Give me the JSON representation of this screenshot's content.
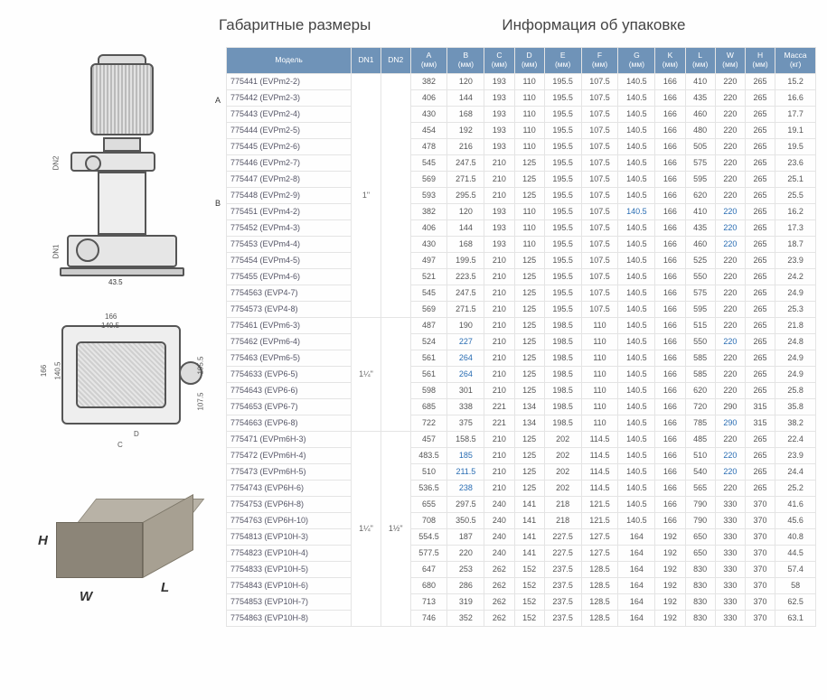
{
  "titles": {
    "left": "Габаритные размеры",
    "right": "Информация об упаковке"
  },
  "diagram": {
    "pump_side": {
      "dn2": "DN2",
      "dn1": "DN1",
      "dimA": "A",
      "dimB": "B",
      "dim435": "43.5"
    },
    "pump_top": {
      "d166": "166",
      "d1405_top": "140.5",
      "d166_left": "166",
      "d1405_left": "140.5",
      "d1955": "195.5",
      "d1075": "107.5",
      "dC": "C",
      "dD": "D"
    },
    "pkg": {
      "H": "H",
      "W": "W",
      "L": "L"
    }
  },
  "table": {
    "headers": [
      "Модель",
      "DN1",
      "DN2",
      "A\n(мм)",
      "B\n(мм)",
      "C\n(мм)",
      "D\n(мм)",
      "E\n(мм)",
      "F\n(мм)",
      "G\n(мм)",
      "K\n(мм)",
      "L\n(мм)",
      "W\n(мм)",
      "H\n(мм)",
      "Масса\n(кг)"
    ],
    "groups": [
      {
        "dn1": "1\"",
        "dn2": "",
        "rows": [
          [
            "775441 (EVPm2-2)",
            "382",
            "120",
            "193",
            "110",
            "195.5",
            "107.5",
            "140.5",
            "166",
            "410",
            "220",
            "265",
            "15.2"
          ],
          [
            "775442 (EVPm2-3)",
            "406",
            "144",
            "193",
            "110",
            "195.5",
            "107.5",
            "140.5",
            "166",
            "435",
            "220",
            "265",
            "16.6"
          ],
          [
            "775443 (EVPm2-4)",
            "430",
            "168",
            "193",
            "110",
            "195.5",
            "107.5",
            "140.5",
            "166",
            "460",
            "220",
            "265",
            "17.7"
          ],
          [
            "775444 (EVPm2-5)",
            "454",
            "192",
            "193",
            "110",
            "195.5",
            "107.5",
            "140.5",
            "166",
            "480",
            "220",
            "265",
            "19.1"
          ],
          [
            "775445 (EVPm2-6)",
            "478",
            "216",
            "193",
            "110",
            "195.5",
            "107.5",
            "140.5",
            "166",
            "505",
            "220",
            "265",
            "19.5"
          ],
          [
            "775446 (EVPm2-7)",
            "545",
            "247.5",
            "210",
            "125",
            "195.5",
            "107.5",
            "140.5",
            "166",
            "575",
            "220",
            "265",
            "23.6"
          ],
          [
            "775447 (EVPm2-8)",
            "569",
            "271.5",
            "210",
            "125",
            "195.5",
            "107.5",
            "140.5",
            "166",
            "595",
            "220",
            "265",
            "25.1"
          ],
          [
            "775448 (EVPm2-9)",
            "593",
            "295.5",
            "210",
            "125",
            "195.5",
            "107.5",
            "140.5",
            "166",
            "620",
            "220",
            "265",
            "25.5"
          ],
          [
            "775451 (EVPm4-2)",
            "382",
            "120",
            "193",
            "110",
            "195.5",
            "107.5",
            "140.5",
            "166",
            "410",
            "220",
            "265",
            "16.2"
          ],
          [
            "775452 (EVPm4-3)",
            "406",
            "144",
            "193",
            "110",
            "195.5",
            "107.5",
            "140.5",
            "166",
            "435",
            "220",
            "265",
            "17.3"
          ],
          [
            "775453 (EVPm4-4)",
            "430",
            "168",
            "193",
            "110",
            "195.5",
            "107.5",
            "140.5",
            "166",
            "460",
            "220",
            "265",
            "18.7"
          ],
          [
            "775454 (EVPm4-5)",
            "497",
            "199.5",
            "210",
            "125",
            "195.5",
            "107.5",
            "140.5",
            "166",
            "525",
            "220",
            "265",
            "23.9"
          ],
          [
            "775455 (EVPm4-6)",
            "521",
            "223.5",
            "210",
            "125",
            "195.5",
            "107.5",
            "140.5",
            "166",
            "550",
            "220",
            "265",
            "24.2"
          ],
          [
            "7754563 (EVP4-7)",
            "545",
            "247.5",
            "210",
            "125",
            "195.5",
            "107.5",
            "140.5",
            "166",
            "575",
            "220",
            "265",
            "24.9"
          ],
          [
            "7754573 (EVP4-8)",
            "569",
            "271.5",
            "210",
            "125",
            "195.5",
            "107.5",
            "140.5",
            "166",
            "595",
            "220",
            "265",
            "25.3"
          ]
        ]
      },
      {
        "dn1": "1¼\"",
        "dn2": "",
        "rows": [
          [
            "775461 (EVPm6-3)",
            "487",
            "190",
            "210",
            "125",
            "198.5",
            "110",
            "140.5",
            "166",
            "515",
            "220",
            "265",
            "21.8"
          ],
          [
            "775462 (EVPm6-4)",
            "524",
            "227",
            "210",
            "125",
            "198.5",
            "110",
            "140.5",
            "166",
            "550",
            "220",
            "265",
            "24.8"
          ],
          [
            "775463 (EVPm6-5)",
            "561",
            "264",
            "210",
            "125",
            "198.5",
            "110",
            "140.5",
            "166",
            "585",
            "220",
            "265",
            "24.9"
          ],
          [
            "7754633 (EVP6-5)",
            "561",
            "264",
            "210",
            "125",
            "198.5",
            "110",
            "140.5",
            "166",
            "585",
            "220",
            "265",
            "24.9"
          ],
          [
            "7754643 (EVP6-6)",
            "598",
            "301",
            "210",
            "125",
            "198.5",
            "110",
            "140.5",
            "166",
            "620",
            "220",
            "265",
            "25.8"
          ],
          [
            "7754653 (EVP6-7)",
            "685",
            "338",
            "221",
            "134",
            "198.5",
            "110",
            "140.5",
            "166",
            "720",
            "290",
            "315",
            "35.8"
          ],
          [
            "7754663 (EVP6-8)",
            "722",
            "375",
            "221",
            "134",
            "198.5",
            "110",
            "140.5",
            "166",
            "785",
            "290",
            "315",
            "38.2"
          ]
        ]
      },
      {
        "dn1": "1¼\"",
        "dn2": "1½\"",
        "rows": [
          [
            "775471 (EVPm6H-3)",
            "457",
            "158.5",
            "210",
            "125",
            "202",
            "114.5",
            "140.5",
            "166",
            "485",
            "220",
            "265",
            "22.4"
          ],
          [
            "775472 (EVPm6H-4)",
            "483.5",
            "185",
            "210",
            "125",
            "202",
            "114.5",
            "140.5",
            "166",
            "510",
            "220",
            "265",
            "23.9"
          ],
          [
            "775473 (EVPm6H-5)",
            "510",
            "211.5",
            "210",
            "125",
            "202",
            "114.5",
            "140.5",
            "166",
            "540",
            "220",
            "265",
            "24.4"
          ],
          [
            "7754743 (EVP6H-6)",
            "536.5",
            "238",
            "210",
            "125",
            "202",
            "114.5",
            "140.5",
            "166",
            "565",
            "220",
            "265",
            "25.2"
          ],
          [
            "7754753 (EVP6H-8)",
            "655",
            "297.5",
            "240",
            "141",
            "218",
            "121.5",
            "140.5",
            "166",
            "790",
            "330",
            "370",
            "41.6"
          ],
          [
            "7754763 (EVP6H-10)",
            "708",
            "350.5",
            "240",
            "141",
            "218",
            "121.5",
            "140.5",
            "166",
            "790",
            "330",
            "370",
            "45.6"
          ],
          [
            "7754813 (EVP10H-3)",
            "554.5",
            "187",
            "240",
            "141",
            "227.5",
            "127.5",
            "164",
            "192",
            "650",
            "330",
            "370",
            "40.8"
          ],
          [
            "7754823 (EVP10H-4)",
            "577.5",
            "220",
            "240",
            "141",
            "227.5",
            "127.5",
            "164",
            "192",
            "650",
            "330",
            "370",
            "44.5"
          ],
          [
            "7754833 (EVP10H-5)",
            "647",
            "253",
            "262",
            "152",
            "237.5",
            "128.5",
            "164",
            "192",
            "830",
            "330",
            "370",
            "57.4"
          ],
          [
            "7754843 (EVP10H-6)",
            "680",
            "286",
            "262",
            "152",
            "237.5",
            "128.5",
            "164",
            "192",
            "830",
            "330",
            "370",
            "58"
          ],
          [
            "7754853 (EVP10H-7)",
            "713",
            "319",
            "262",
            "152",
            "237.5",
            "128.5",
            "164",
            "192",
            "830",
            "330",
            "370",
            "62.5"
          ],
          [
            "7754863 (EVP10H-8)",
            "746",
            "352",
            "262",
            "152",
            "237.5",
            "128.5",
            "164",
            "192",
            "830",
            "330",
            "370",
            "63.1"
          ]
        ]
      }
    ],
    "blue_cells": [
      [
        8,
        9
      ],
      [
        8,
        12
      ],
      [
        9,
        12
      ],
      [
        10,
        12
      ],
      [
        16,
        4
      ],
      [
        16,
        12
      ],
      [
        17,
        4
      ],
      [
        18,
        4
      ],
      [
        21,
        12
      ],
      [
        23,
        4
      ],
      [
        23,
        12
      ],
      [
        24,
        4
      ],
      [
        24,
        12
      ],
      [
        25,
        4
      ]
    ],
    "colors": {
      "header_bg": "#6f93b8",
      "header_fg": "#ffffff",
      "border": "#e4e4e4",
      "text": "#555555",
      "link": "#2a6db3"
    }
  }
}
